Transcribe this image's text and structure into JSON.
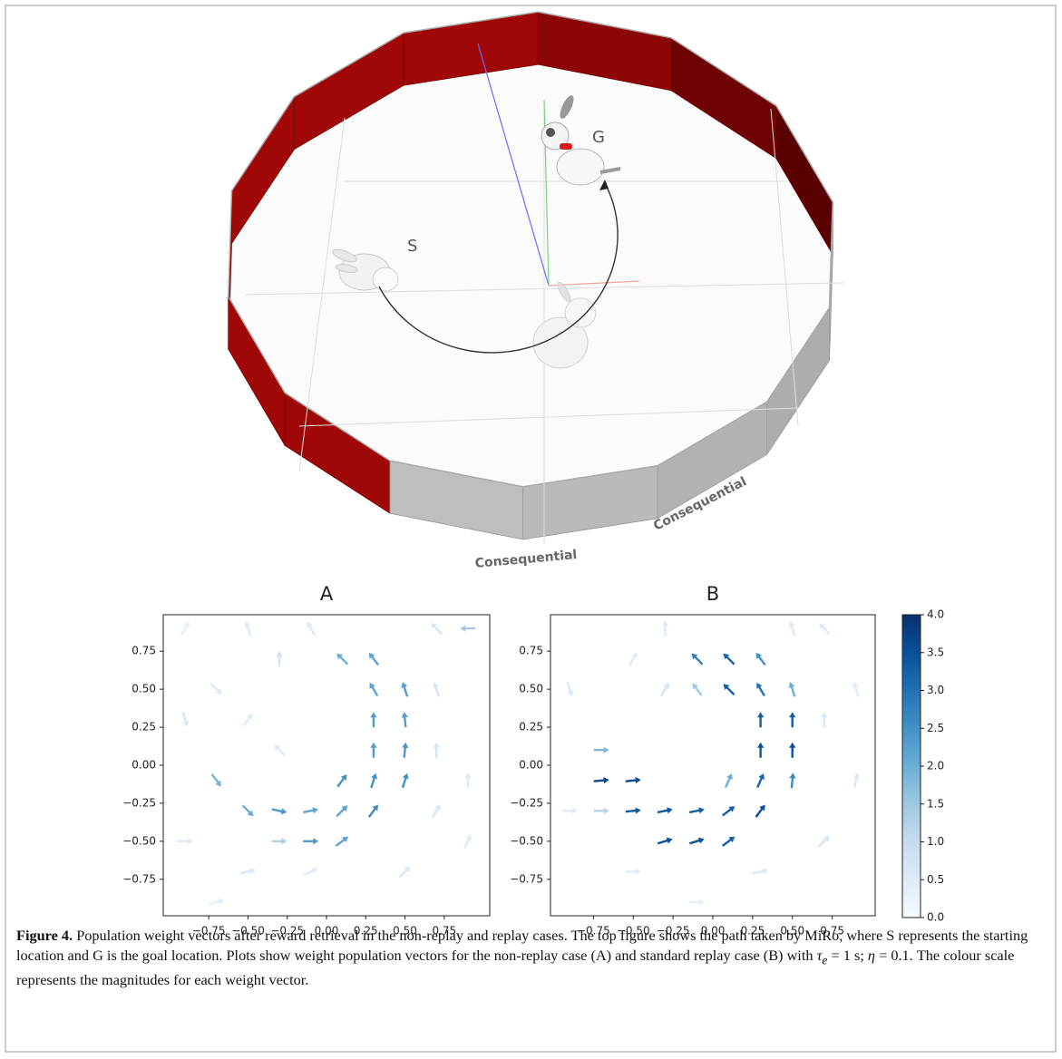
{
  "figure": {
    "arena": {
      "start_label": "S",
      "goal_label": "G",
      "wall_text": [
        "Consequential",
        "Consequential"
      ]
    },
    "caption": {
      "label": "Figure 4.",
      "text": "Population weight vectors after reward retrieval in the non-replay and replay cases. The top figure shows the path taken by MiRo, where S represents the starting location and G is the goal location. Plots show weight population vectors for the non-replay case (A) and standard replay case (B) with",
      "tau": "τ",
      "tau_sub": "e",
      "tau_rest": "= 1 s;",
      "eta": "η",
      "eta_rest": "= 0.1. The colour scale represents the magnitudes for each weight vector."
    }
  },
  "chart_data": [
    {
      "type": "quiver",
      "title": "A",
      "xlim": [
        -1.04,
        1.04
      ],
      "ylim": [
        -0.99,
        0.99
      ],
      "xticks": [
        {
          "value": -0.75,
          "label": "−0.75"
        },
        {
          "value": -0.5,
          "label": "−0.50"
        },
        {
          "value": -0.25,
          "label": "−0.25"
        },
        {
          "value": 0,
          "label": "0.00"
        },
        0.25,
        {
          "value": 0.5,
          "label": "0.50"
        },
        0.75
      ],
      "yticks": [
        {
          "value": -0.75,
          "label": "−0.75"
        },
        {
          "value": -0.5,
          "label": "−0.50"
        },
        {
          "value": -0.25,
          "label": "−0.25"
        },
        {
          "value": 0,
          "label": "0.00"
        },
        0.25,
        {
          "value": 0.5,
          "label": "0.50"
        },
        0.75
      ],
      "x": [
        0.1,
        0.3,
        0.3,
        0.5,
        0.3,
        0.5,
        0.3,
        0.5,
        0.1,
        0.3,
        0.5,
        -0.7,
        -0.5,
        -0.3,
        -0.1,
        0.1,
        0.3,
        -0.1,
        0.1,
        -0.3,
        0.9,
        -0.9,
        -0.5,
        -0.3,
        -0.1,
        0.7,
        0.7,
        -0.9,
        -0.7,
        -0.5,
        0.7,
        0.9,
        -0.9,
        -0.3,
        0.5,
        0.9,
        -0.5,
        -0.1,
        0.7,
        -0.7
      ],
      "y": [
        0.7,
        0.7,
        0.5,
        0.5,
        0.3,
        0.3,
        0.1,
        0.1,
        -0.1,
        -0.1,
        -0.1,
        -0.1,
        -0.3,
        -0.3,
        -0.3,
        -0.3,
        -0.3,
        -0.5,
        -0.5,
        -0.5,
        0.9,
        0.9,
        0.9,
        0.7,
        0.9,
        0.9,
        0.5,
        0.3,
        0.5,
        0.3,
        0.1,
        -0.1,
        -0.5,
        0.1,
        -0.7,
        -0.5,
        -0.7,
        -0.7,
        -0.3,
        -0.9
      ],
      "u": [
        -0.7,
        -0.6,
        -0.5,
        -0.3,
        0,
        -0.1,
        0,
        0.1,
        0.6,
        0.3,
        0.3,
        0.6,
        0.7,
        1,
        1,
        0.7,
        0.6,
        1,
        0.8,
        1,
        -1,
        0.5,
        -0.3,
        0,
        -0.5,
        -0.7,
        -0.3,
        0.3,
        0.7,
        0.6,
        0,
        0,
        1,
        -0.7,
        0.7,
        0.4,
        1,
        0.9,
        0.5,
        1
      ],
      "v": [
        0.7,
        0.8,
        0.85,
        0.95,
        1,
        1,
        1,
        1,
        0.8,
        0.95,
        0.95,
        -0.8,
        -0.7,
        -0.2,
        0.2,
        0.7,
        0.8,
        0,
        0.6,
        0,
        0,
        0.85,
        0.95,
        1,
        0.85,
        0.7,
        0.95,
        -0.95,
        -0.7,
        0.8,
        1,
        1,
        0,
        0.7,
        0.7,
        0.9,
        0.2,
        0.4,
        0.85,
        0.3
      ],
      "c": [
        2.0,
        2.2,
        2.2,
        2.3,
        2.3,
        2.3,
        2.3,
        2.4,
        2.5,
        2.5,
        2.5,
        1.9,
        2.0,
        2.4,
        2.2,
        2.2,
        2.6,
        2.3,
        2.2,
        1.3,
        1.4,
        0.4,
        0.5,
        0.8,
        0.6,
        0.6,
        0.7,
        0.6,
        0.5,
        0.5,
        0.7,
        0.5,
        0.5,
        0.5,
        0.6,
        0.5,
        0.6,
        0.5,
        0.7,
        0.4
      ]
    },
    {
      "type": "quiver",
      "title": "B",
      "xlim": [
        -1.02,
        1.02
      ],
      "ylim": [
        -0.99,
        0.99
      ],
      "xticks": [
        {
          "value": -0.75,
          "label": "−0.75"
        },
        {
          "value": -0.5,
          "label": "−0.50"
        },
        {
          "value": -0.25,
          "label": "−0.25"
        },
        {
          "value": 0,
          "label": "0.00"
        },
        0.25,
        {
          "value": 0.5,
          "label": "0.50"
        },
        0.75
      ],
      "yticks": [
        {
          "value": -0.75,
          "label": "−0.75"
        },
        {
          "value": -0.5,
          "label": "−0.50"
        },
        {
          "value": -0.25,
          "label": "−0.25"
        },
        {
          "value": 0,
          "label": "0.00"
        },
        0.25,
        {
          "value": 0.5,
          "label": "0.50"
        },
        0.75
      ],
      "x": [
        -0.1,
        0.1,
        0.3,
        -0.1,
        0.1,
        0.3,
        0.5,
        0.3,
        0.5,
        0.3,
        0.5,
        0.1,
        0.3,
        0.5,
        -0.7,
        -0.5,
        -0.7,
        -0.5,
        -0.3,
        -0.1,
        0.1,
        0.3,
        -0.3,
        -0.1,
        0.1,
        -0.7,
        -0.3,
        0.7,
        -0.3,
        -0.9,
        0.7,
        0.9,
        0.7,
        0.3,
        -0.5,
        -0.9,
        0.9,
        -0.5,
        -0.1,
        0.5
      ],
      "y": [
        0.7,
        0.7,
        0.7,
        0.5,
        0.5,
        0.5,
        0.5,
        0.3,
        0.3,
        0.1,
        0.1,
        -0.1,
        -0.1,
        -0.1,
        -0.1,
        -0.1,
        0.1,
        -0.3,
        -0.3,
        -0.3,
        -0.3,
        -0.3,
        -0.5,
        -0.5,
        -0.5,
        -0.3,
        0.9,
        0.9,
        0.5,
        0.5,
        0.3,
        -0.1,
        -0.5,
        -0.7,
        -0.7,
        -0.3,
        0.5,
        0.7,
        -0.9,
        0.9
      ],
      "u": [
        -0.7,
        -0.7,
        -0.6,
        -0.6,
        -0.7,
        -0.5,
        -0.3,
        0,
        0,
        0,
        0,
        0.4,
        0.4,
        0.1,
        1,
        1,
        1,
        1,
        1,
        1,
        0.8,
        0.6,
        1,
        1,
        0.8,
        1,
        0,
        -0.7,
        0.5,
        0.3,
        0,
        0.2,
        0.7,
        1,
        1,
        1,
        -0.3,
        0.5,
        1,
        -0.3
      ],
      "v": [
        0.7,
        0.7,
        0.8,
        0.8,
        0.7,
        0.85,
        0.95,
        1,
        1,
        1,
        1,
        0.9,
        0.9,
        1,
        0.1,
        0.1,
        0,
        0.1,
        0.2,
        0.2,
        0.6,
        0.8,
        0.3,
        0.3,
        0.6,
        0,
        1,
        0.7,
        0.85,
        -0.95,
        1,
        1,
        0.7,
        0.2,
        0,
        0,
        0.95,
        0.85,
        0,
        0.95
      ],
      "c": [
        2.8,
        3.2,
        2.5,
        1.5,
        3.3,
        3.0,
        2.0,
        3.3,
        3.3,
        3.5,
        3.5,
        2.0,
        3.2,
        2.6,
        3.6,
        3.6,
        1.8,
        3.4,
        3.4,
        3.3,
        3.3,
        3.5,
        3.5,
        3.5,
        3.3,
        1.2,
        0.5,
        0.5,
        0.7,
        0.6,
        0.6,
        0.5,
        0.7,
        0.6,
        0.5,
        0.5,
        0.5,
        0.5,
        0.4,
        0.5
      ]
    },
    {
      "type": "colorbar",
      "colors": [
        "#f7fbff",
        "#deebf7",
        "#c6dbef",
        "#9ecae1",
        "#6baed6",
        "#4292c6",
        "#2171b5",
        "#08519c",
        "#08306b"
      ],
      "ylim": [
        0,
        4
      ],
      "yticks": [
        {
          "value": 0,
          "label": "0.0"
        },
        0.5,
        {
          "value": 1,
          "label": "1.0"
        },
        1.5,
        {
          "value": 2,
          "label": "2.0"
        },
        2.5,
        {
          "value": 3,
          "label": "3.0"
        },
        3.5,
        {
          "value": 4,
          "label": "4.0"
        }
      ]
    }
  ]
}
